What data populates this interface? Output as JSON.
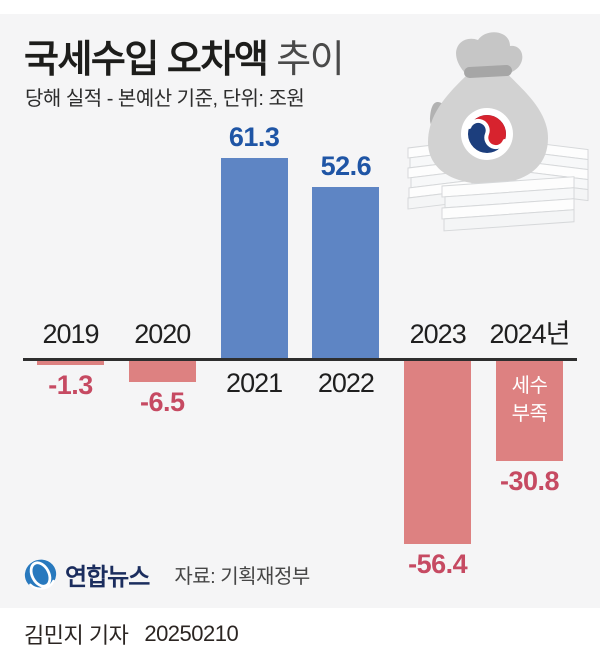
{
  "title": {
    "main": "국세수입 오차액",
    "suffix": "추이"
  },
  "subtitle": "당해 실적 - 본예산 기준, 단위: 조원",
  "chart_data": {
    "type": "bar",
    "categories": [
      "2019",
      "2020",
      "2021",
      "2022",
      "2023",
      "2024년"
    ],
    "values": [
      -1.3,
      -6.5,
      61.3,
      52.6,
      -56.4,
      -30.8
    ],
    "value_labels": [
      "-1.3",
      "-6.5",
      "61.3",
      "52.6",
      "-56.4",
      "-30.8"
    ],
    "annotation": {
      "category": "2024년",
      "text": "세수\n부족"
    },
    "unit": "조원",
    "baseline": 0,
    "ylim": [
      -60,
      65
    ],
    "grid": "off",
    "colors": {
      "bar_positive": "#5e85c4",
      "bar_negative": "#dd8181",
      "label_positive": "#1f55a5",
      "label_negative": "#c64a62",
      "axis": "#2e2e2e"
    }
  },
  "footer": {
    "logo_text": "연합뉴스",
    "source": "자료: 기획재정부"
  },
  "byline": {
    "reporter": "김민지 기자",
    "date": "20250210"
  },
  "icons": {
    "money_bag": "money-bag-with-korea-government-emblem",
    "logo_mark": "yonhap-news-globe-mark"
  }
}
